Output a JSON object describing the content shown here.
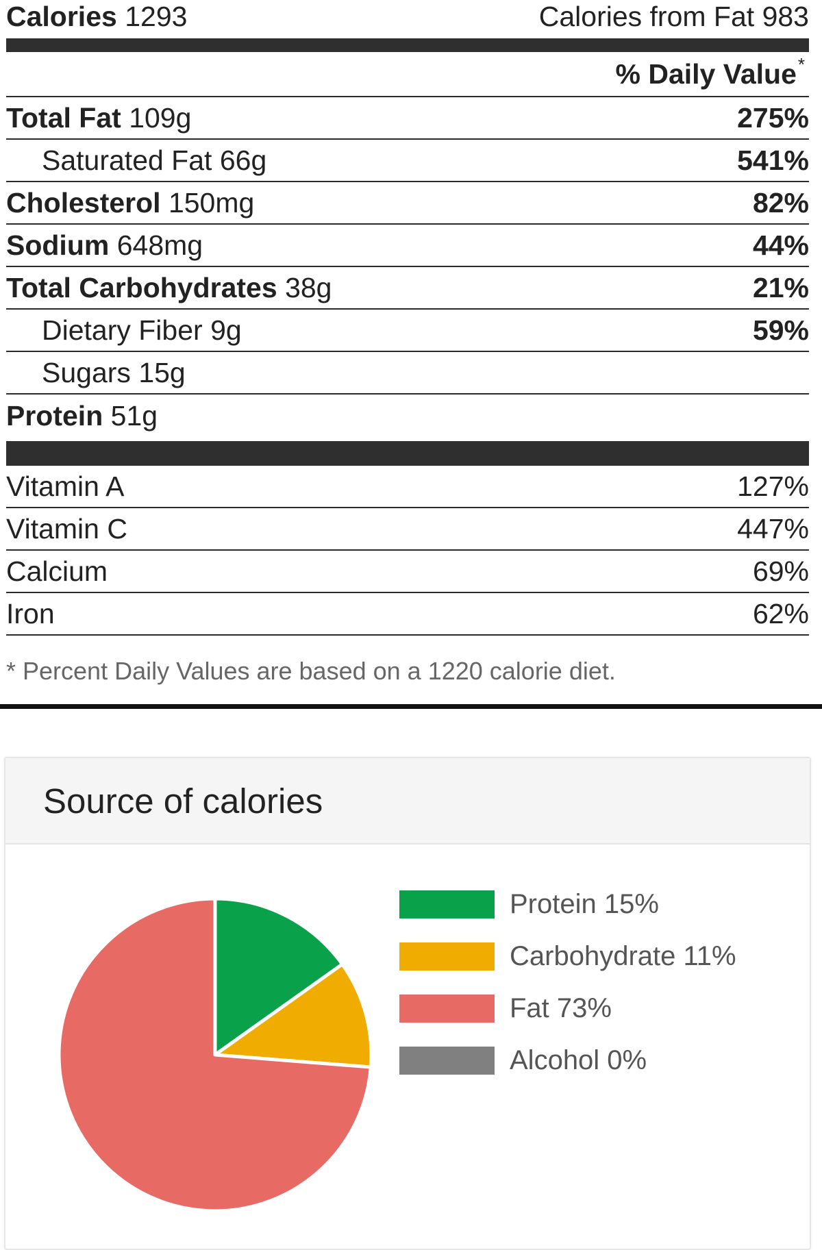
{
  "facts": {
    "calories_label": "Calories",
    "calories_value": "1293",
    "fat_calories_label": "Calories from Fat",
    "fat_calories_value": "983",
    "daily_value_header": "% Daily Value",
    "daily_value_mark": "*",
    "nutrients": [
      {
        "name": "Total Fat",
        "amount": "109g",
        "pct": "275%",
        "sub": false
      },
      {
        "name": "Saturated Fat",
        "amount": "66g",
        "pct": "541%",
        "sub": true
      },
      {
        "name": "Cholesterol",
        "amount": "150mg",
        "pct": "82%",
        "sub": false
      },
      {
        "name": "Sodium",
        "amount": "648mg",
        "pct": "44%",
        "sub": false
      },
      {
        "name": "Total Carbohydrates",
        "amount": "38g",
        "pct": "21%",
        "sub": false
      },
      {
        "name": "Dietary Fiber",
        "amount": "9g",
        "pct": "59%",
        "sub": true
      },
      {
        "name": "Sugars",
        "amount": "15g",
        "pct": "",
        "sub": true
      },
      {
        "name": "Protein",
        "amount": "51g",
        "pct": "",
        "sub": false
      }
    ],
    "vitamins": [
      {
        "name": "Vitamin A",
        "pct": "127%"
      },
      {
        "name": "Vitamin C",
        "pct": "447%"
      },
      {
        "name": "Calcium",
        "pct": "69%"
      },
      {
        "name": "Iron",
        "pct": "62%"
      }
    ],
    "footnote": "* Percent Daily Values are based on a 1220 calorie diet."
  },
  "chart_data": {
    "type": "pie",
    "title": "Source of calories",
    "legend_position": "right",
    "slices": [
      {
        "name": "Protein",
        "value": 15,
        "label": "Protein 15%",
        "color": "#0aa14b"
      },
      {
        "name": "Carbohydrate",
        "value": 11,
        "label": "Carbohydrate 11%",
        "color": "#f0ac00"
      },
      {
        "name": "Fat",
        "value": 73,
        "label": "Fat 73%",
        "color": "#e86a64"
      },
      {
        "name": "Alcohol",
        "value": 0,
        "label": "Alcohol 0%",
        "color": "#808080"
      }
    ]
  }
}
